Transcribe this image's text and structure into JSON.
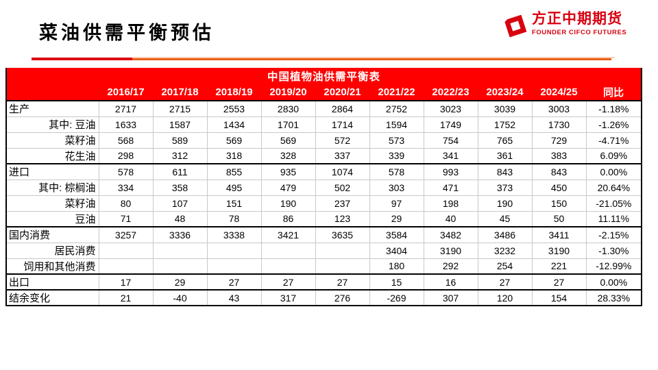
{
  "header": {
    "title": "菜油供需平衡预估"
  },
  "logo": {
    "cn": "方正中期期货",
    "en": "FOUNDER CIFCO FUTURES"
  },
  "colors": {
    "header-red": "#fe0000",
    "brand-red": "#d7000f",
    "rule-red": "#dd0010",
    "rule-orange": "#ea5b16",
    "rule-pale": "#f7cdb4",
    "grid-gray": "#c8c8c8",
    "line-black": "#000000"
  },
  "table": {
    "title": "中国植物油供需平衡表",
    "columns": [
      "",
      "2016/17",
      "2017/18",
      "2018/19",
      "2019/20",
      "2020/21",
      "2021/22",
      "2022/23",
      "2023/24",
      "2024/25",
      "同比"
    ],
    "rows": [
      {
        "label": "生产",
        "align": "left",
        "sec": true,
        "values": [
          "2717",
          "2715",
          "2553",
          "2830",
          "2864",
          "2752",
          "3023",
          "3039",
          "3003",
          "-1.18%"
        ]
      },
      {
        "label": "其中: 豆油",
        "align": "right",
        "sec": false,
        "values": [
          "1633",
          "1587",
          "1434",
          "1701",
          "1714",
          "1594",
          "1749",
          "1752",
          "1730",
          "-1.26%"
        ]
      },
      {
        "label": "菜籽油",
        "align": "right",
        "sec": false,
        "values": [
          "568",
          "589",
          "569",
          "569",
          "572",
          "573",
          "754",
          "765",
          "729",
          "-4.71%"
        ]
      },
      {
        "label": "花生油",
        "align": "right",
        "sec": false,
        "values": [
          "298",
          "312",
          "318",
          "328",
          "337",
          "339",
          "341",
          "361",
          "383",
          "6.09%"
        ]
      },
      {
        "label": "进口",
        "align": "left",
        "sec": true,
        "values": [
          "578",
          "611",
          "855",
          "935",
          "1074",
          "578",
          "993",
          "843",
          "843",
          "0.00%"
        ]
      },
      {
        "label": "其中: 棕榈油",
        "align": "right",
        "sec": false,
        "values": [
          "334",
          "358",
          "495",
          "479",
          "502",
          "303",
          "471",
          "373",
          "450",
          "20.64%"
        ]
      },
      {
        "label": "菜籽油",
        "align": "right",
        "sec": false,
        "values": [
          "80",
          "107",
          "151",
          "190",
          "237",
          "97",
          "198",
          "190",
          "150",
          "-21.05%"
        ]
      },
      {
        "label": "豆油",
        "align": "right",
        "sec": false,
        "values": [
          "71",
          "48",
          "78",
          "86",
          "123",
          "29",
          "40",
          "45",
          "50",
          "11.11%"
        ]
      },
      {
        "label": "国内消费",
        "align": "left",
        "sec": true,
        "values": [
          "3257",
          "3336",
          "3338",
          "3421",
          "3635",
          "3584",
          "3482",
          "3486",
          "3411",
          "-2.15%"
        ]
      },
      {
        "label": "居民消费",
        "align": "right",
        "sec": false,
        "values": [
          "",
          "",
          "",
          "",
          "",
          "3404",
          "3190",
          "3232",
          "3190",
          "-1.30%"
        ]
      },
      {
        "label": "饲用和其他消费",
        "align": "right",
        "sec": false,
        "values": [
          "",
          "",
          "",
          "",
          "",
          "180",
          "292",
          "254",
          "221",
          "-12.99%"
        ]
      },
      {
        "label": "出口",
        "align": "left",
        "sec": true,
        "values": [
          "17",
          "29",
          "27",
          "27",
          "27",
          "15",
          "16",
          "27",
          "27",
          "0.00%"
        ]
      },
      {
        "label": "结余变化",
        "align": "left",
        "sec": true,
        "values": [
          "21",
          "-40",
          "43",
          "317",
          "276",
          "-269",
          "307",
          "120",
          "154",
          "28.33%"
        ]
      }
    ]
  }
}
